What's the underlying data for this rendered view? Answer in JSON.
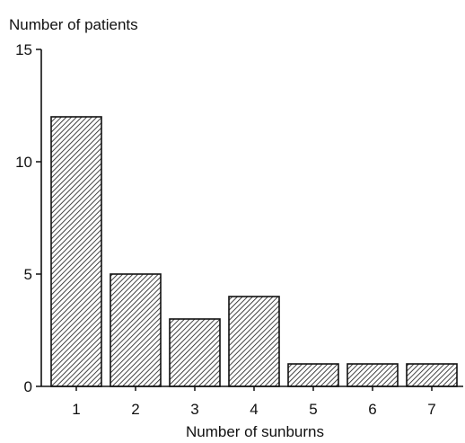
{
  "chart_data": {
    "type": "bar",
    "ylabel": "Number of patients",
    "xlabel": "Number of sunburns",
    "categories": [
      "1",
      "2",
      "3",
      "4",
      "5",
      "6",
      "7"
    ],
    "values": [
      12,
      5,
      3,
      4,
      1,
      1,
      1
    ],
    "ylim": [
      0,
      15
    ],
    "yticks": [
      0,
      5,
      10,
      15
    ],
    "grid": false,
    "bar_fill": "diagonal hatch",
    "colors": {
      "bar_stroke": "#111111",
      "hatch": "#222222",
      "axis": "#111111",
      "background": "#ffffff"
    }
  }
}
